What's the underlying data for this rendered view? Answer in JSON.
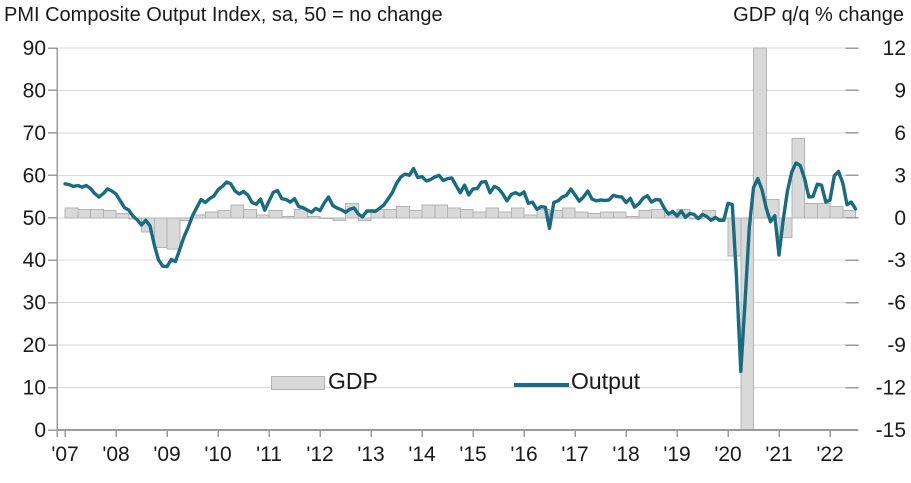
{
  "header": {
    "left_title": "PMI Composite  Output  Index, sa, 50 = no change",
    "right_title": "GDP q/q % change"
  },
  "legend": {
    "items": [
      {
        "label": "GDP",
        "swatch": "bar"
      },
      {
        "label": "Output",
        "swatch": "line"
      }
    ]
  },
  "colors": {
    "line": "#176c82",
    "bar_fill": "#d9d9d9",
    "bar_stroke": "#b3b3b3",
    "grid": "#d9d9d9",
    "axis": "#9b9b9b",
    "text": "#1a1a1a",
    "background": "#ffffff"
  },
  "chart_data": {
    "type": "combo",
    "title": "PMI Composite  Output  Index, sa, 50 = no change",
    "right_axis_title": "GDP q/q % change",
    "grid": true,
    "legend_position": "inside-bottom",
    "x_tick_labels": [
      "'07",
      "'08",
      "'09",
      "'10",
      "'11",
      "'12",
      "'13",
      "'14",
      "'15",
      "'16",
      "'17",
      "'18",
      "'19",
      "'20",
      "'21",
      "'22"
    ],
    "left_axis": {
      "range": [
        0,
        90
      ],
      "ticks": [
        0,
        10,
        20,
        30,
        40,
        50,
        60,
        70,
        80,
        90
      ]
    },
    "right_axis": {
      "range": [
        -15,
        12
      ],
      "ticks": [
        12,
        9,
        6,
        3,
        0,
        -3,
        -6,
        -9,
        -12,
        -15
      ]
    },
    "series": [
      {
        "name": "GDP",
        "chart_type": "bar",
        "axis": "right",
        "frequency": "quarterly",
        "start": "2007Q1",
        "end": "2022Q2",
        "values": [
          0.7,
          0.6,
          0.6,
          0.5,
          0.3,
          -0.1,
          -1.0,
          -2.1,
          -2.2,
          -0.2,
          0.2,
          0.4,
          0.5,
          0.9,
          0.6,
          0.2,
          0.5,
          0.1,
          0.6,
          0.1,
          0.0,
          -0.2,
          1.0,
          -0.2,
          0.6,
          0.6,
          0.8,
          0.5,
          0.9,
          0.9,
          0.7,
          0.6,
          0.4,
          0.7,
          0.4,
          0.7,
          0.2,
          0.6,
          0.5,
          0.7,
          0.4,
          0.3,
          0.4,
          0.4,
          0.1,
          0.5,
          0.6,
          0.2,
          0.6,
          -0.1,
          0.5,
          0.0,
          -2.7,
          -19.4,
          16.0,
          1.3,
          -1.4,
          5.6,
          1.0,
          1.0,
          0.8,
          0.5
        ]
      },
      {
        "name": "Output",
        "chart_type": "line",
        "axis": "left",
        "frequency": "monthly",
        "start": "2007-01",
        "end": "2022-07",
        "values": [
          58.0,
          57.8,
          57.4,
          57.6,
          57.2,
          57.6,
          56.9,
          55.7,
          54.9,
          55.7,
          56.8,
          56.3,
          55.6,
          54.0,
          52.4,
          51.8,
          50.4,
          49.5,
          48.3,
          49.4,
          48.1,
          43.6,
          40.1,
          38.6,
          38.5,
          40.2,
          39.7,
          42.6,
          45.5,
          47.8,
          50.5,
          52.4,
          54.3,
          53.6,
          54.5,
          55.1,
          56.6,
          57.4,
          58.4,
          58.0,
          56.3,
          55.6,
          56.2,
          55.4,
          53.6,
          53.2,
          54.4,
          51.8,
          53.9,
          56.0,
          56.4,
          54.5,
          54.3,
          53.7,
          54.5,
          52.6,
          52.4,
          51.8,
          51.3,
          52.2,
          51.7,
          53.5,
          54.9,
          52.9,
          52.3,
          51.9,
          51.3,
          52.0,
          52.3,
          50.9,
          50.2,
          51.6,
          51.6,
          51.5,
          52.2,
          53.0,
          54.4,
          55.9,
          58.1,
          59.6,
          60.3,
          60.0,
          61.6,
          59.5,
          59.7,
          58.7,
          59.0,
          59.6,
          60.0,
          58.8,
          59.2,
          59.4,
          57.6,
          55.9,
          57.7,
          55.4,
          56.8,
          56.9,
          58.4,
          58.5,
          55.9,
          57.4,
          56.9,
          55.6,
          54.0,
          55.5,
          55.9,
          55.4,
          56.1,
          53.4,
          53.7,
          52.0,
          52.6,
          52.5,
          47.5,
          53.6,
          54.0,
          54.9,
          55.3,
          56.8,
          55.4,
          53.9,
          54.9,
          56.3,
          54.4,
          54.0,
          54.2,
          54.1,
          54.2,
          55.3,
          55.0,
          54.9,
          53.6,
          54.6,
          52.5,
          53.3,
          54.6,
          55.2,
          53.7,
          54.3,
          54.2,
          52.2,
          50.9,
          51.5,
          50.4,
          51.6,
          50.1,
          51.0,
          50.8,
          49.8,
          50.8,
          50.3,
          49.4,
          50.1,
          49.4,
          49.4,
          53.4,
          53.1,
          36.0,
          13.8,
          30.0,
          47.7,
          57.1,
          59.2,
          56.6,
          52.2,
          49.1,
          50.5,
          41.2,
          49.7,
          56.4,
          60.8,
          62.9,
          62.3,
          59.3,
          54.9,
          55.0,
          57.9,
          57.7,
          53.7,
          54.2,
          59.9,
          60.9,
          58.2,
          53.1,
          53.7,
          52.1
        ]
      }
    ]
  }
}
